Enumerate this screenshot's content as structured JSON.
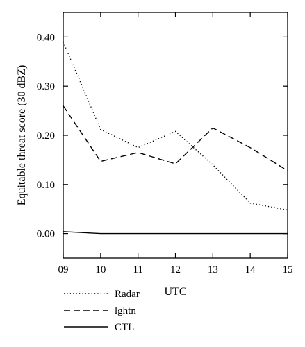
{
  "chart_data": {
    "type": "line",
    "xlabel": "UTC",
    "ylabel": "Equitable threat score (30 dBZ)",
    "x": [
      "09",
      "10",
      "11",
      "12",
      "13",
      "14",
      "15"
    ],
    "xlim": [
      9,
      15
    ],
    "ylim": [
      -0.05,
      0.45
    ],
    "yticks": [
      "0.00",
      "0.10",
      "0.20",
      "0.30",
      "0.40"
    ],
    "ytick_values": [
      0.0,
      0.1,
      0.2,
      0.3,
      0.4
    ],
    "series": [
      {
        "name": "Radar",
        "style": "dotted",
        "values": [
          0.39,
          0.212,
          0.175,
          0.208,
          0.14,
          0.062,
          0.048
        ]
      },
      {
        "name": "lghtn",
        "style": "dashed",
        "values": [
          0.26,
          0.147,
          0.165,
          0.142,
          0.215,
          0.175,
          0.128
        ]
      },
      {
        "name": "CTL",
        "style": "solid",
        "values": [
          0.004,
          0.0,
          0.0,
          0.0,
          0.0,
          0.0,
          0.0
        ]
      }
    ],
    "legend_position": "bottom-left",
    "grid": false
  }
}
